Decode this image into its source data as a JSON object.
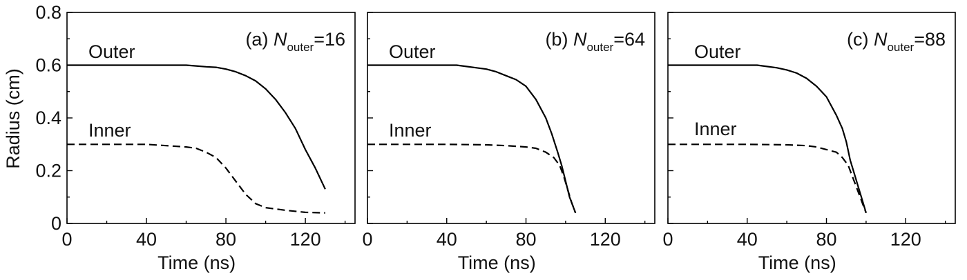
{
  "figure": {
    "ylabel": "Radius (cm)",
    "y_ticks": [
      "0",
      "0.2",
      "0.4",
      "0.6",
      "0.8"
    ],
    "x_ticks": [
      "0",
      "40",
      "80",
      "120"
    ],
    "xlabel": "Time (ns)"
  },
  "colors": {
    "line": "#000000",
    "frame": "#000000"
  },
  "chart_data": [
    {
      "type": "line",
      "panel_prefix": "(a) ",
      "panel_var": "N",
      "panel_sub": "outer",
      "panel_value": "=16",
      "xlabel": "Time (ns)",
      "ylabel": "Radius (cm)",
      "xlim": [
        0,
        145
      ],
      "ylim": [
        0,
        0.8
      ],
      "outer_label": "Outer",
      "inner_label": "Inner",
      "series": [
        {
          "style": "solid",
          "x": [
            0,
            20,
            40,
            60,
            65,
            70,
            75,
            80,
            85,
            90,
            95,
            100,
            105,
            110,
            115,
            120,
            125,
            130
          ],
          "values": [
            0.6,
            0.6,
            0.6,
            0.6,
            0.597,
            0.594,
            0.592,
            0.585,
            0.575,
            0.56,
            0.54,
            0.51,
            0.47,
            0.42,
            0.36,
            0.28,
            0.21,
            0.13
          ]
        },
        {
          "style": "dashed",
          "x": [
            0,
            20,
            40,
            50,
            60,
            65,
            70,
            75,
            80,
            85,
            90,
            95,
            100,
            110,
            120,
            130
          ],
          "values": [
            0.3,
            0.3,
            0.3,
            0.295,
            0.29,
            0.285,
            0.27,
            0.25,
            0.21,
            0.16,
            0.11,
            0.075,
            0.06,
            0.05,
            0.042,
            0.04
          ]
        }
      ]
    },
    {
      "type": "line",
      "panel_prefix": "(b) ",
      "panel_var": "N",
      "panel_sub": "outer",
      "panel_value": "=64",
      "xlabel": "Time (ns)",
      "ylabel": "Radius (cm)",
      "xlim": [
        0,
        145
      ],
      "ylim": [
        0,
        0.8
      ],
      "outer_label": "Outer",
      "inner_label": "Inner",
      "series": [
        {
          "style": "solid",
          "x": [
            0,
            20,
            40,
            45,
            50,
            55,
            60,
            65,
            70,
            75,
            80,
            85,
            90,
            93,
            96,
            98,
            100,
            102,
            105
          ],
          "values": [
            0.6,
            0.6,
            0.6,
            0.6,
            0.595,
            0.59,
            0.585,
            0.575,
            0.56,
            0.545,
            0.52,
            0.47,
            0.4,
            0.34,
            0.27,
            0.22,
            0.16,
            0.1,
            0.04
          ]
        },
        {
          "style": "dashed",
          "x": [
            0,
            20,
            40,
            60,
            70,
            80,
            85,
            90,
            94,
            97,
            99,
            101,
            103,
            105
          ],
          "values": [
            0.3,
            0.3,
            0.3,
            0.298,
            0.295,
            0.29,
            0.285,
            0.27,
            0.25,
            0.22,
            0.18,
            0.13,
            0.08,
            0.04
          ]
        }
      ]
    },
    {
      "type": "line",
      "panel_prefix": "(c) ",
      "panel_var": "N",
      "panel_sub": "outer",
      "panel_value": "=88",
      "xlabel": "Time (ns)",
      "ylabel": "Radius (cm)",
      "xlim": [
        0,
        145
      ],
      "ylim": [
        0,
        0.8
      ],
      "outer_label": "Outer",
      "inner_label": "Inner",
      "series": [
        {
          "style": "solid",
          "x": [
            0,
            20,
            40,
            45,
            50,
            55,
            60,
            65,
            70,
            75,
            80,
            85,
            88,
            90,
            92,
            94,
            96,
            98,
            100
          ],
          "values": [
            0.6,
            0.6,
            0.6,
            0.6,
            0.595,
            0.59,
            0.582,
            0.57,
            0.55,
            0.52,
            0.48,
            0.41,
            0.36,
            0.31,
            0.24,
            0.19,
            0.14,
            0.09,
            0.04
          ]
        },
        {
          "style": "dashed",
          "x": [
            0,
            20,
            40,
            60,
            70,
            75,
            80,
            85,
            88,
            91,
            93,
            95,
            97,
            99,
            100
          ],
          "values": [
            0.3,
            0.3,
            0.3,
            0.298,
            0.295,
            0.29,
            0.28,
            0.27,
            0.25,
            0.22,
            0.18,
            0.14,
            0.1,
            0.06,
            0.04
          ]
        }
      ]
    }
  ]
}
